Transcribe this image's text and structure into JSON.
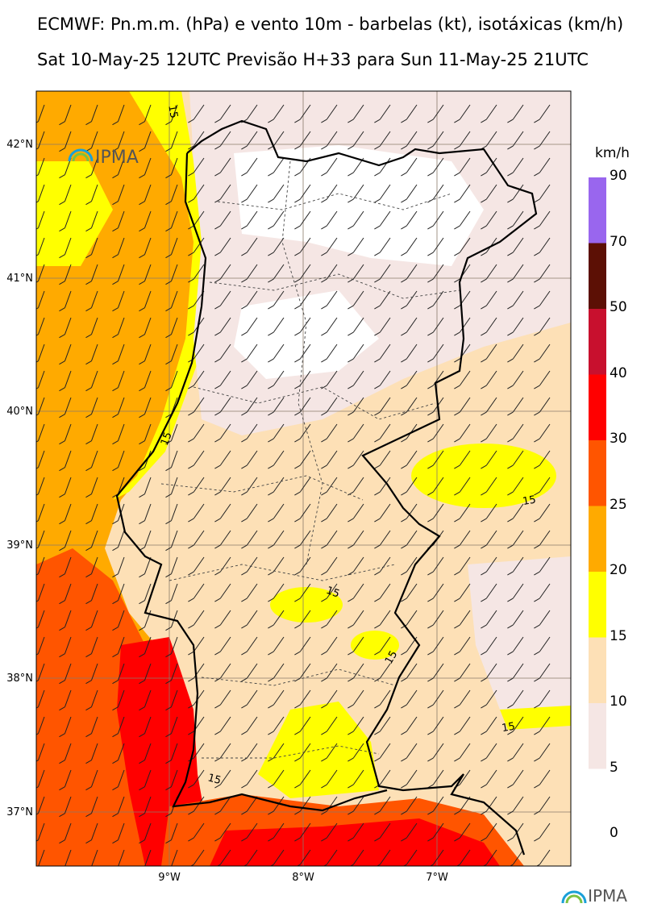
{
  "header": {
    "title_line1": "ECMWF: Pn.m.m. (hPa) e vento 10m - barbelas (kt), isotáxicas (km/h)",
    "title_line2": "Sat 10-May-25 12UTC Previsão H+33 para Sun 11-May-25 21UTC"
  },
  "map": {
    "lat_labels": [
      "42°N",
      "41°N",
      "40°N",
      "39°N",
      "38°N",
      "37°N"
    ],
    "lon_labels": [
      "9°W",
      "8°W",
      "7°W"
    ],
    "contour_labels": [
      "15",
      "15",
      "15",
      "15",
      "15",
      "15",
      "15"
    ],
    "logo_text": "IPMA"
  },
  "legend": {
    "unit": "km/h",
    "levels": [
      "90",
      "70",
      "50",
      "40",
      "30",
      "25",
      "20",
      "15",
      "10",
      "5",
      "0"
    ],
    "colors": [
      "#9966ee",
      "#5c1005",
      "#c8102e",
      "#ff0000",
      "#ff5500",
      "#ffaa00",
      "#ffff00",
      "#fde0b6",
      "#f5e6e4",
      "#ffffff"
    ]
  },
  "footer": {
    "logo_text": "IPMA"
  }
}
